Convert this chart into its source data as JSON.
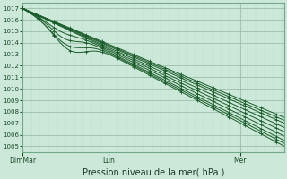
{
  "xlabel": "Pression niveau de la mer( hPa )",
  "ylim": [
    1004.5,
    1017.5
  ],
  "yticks": [
    1005,
    1006,
    1007,
    1008,
    1009,
    1010,
    1011,
    1012,
    1013,
    1014,
    1015,
    1016,
    1017
  ],
  "xtick_labels": [
    "DimMar",
    "Lun",
    "Mer"
  ],
  "xtick_positions": [
    0,
    0.33,
    0.83
  ],
  "background_color": "#cce8d8",
  "grid_minor_color": "#b0d4c0",
  "grid_major_color": "#90b8a0",
  "line_color": "#1a5c2a",
  "n": 100,
  "offsets": [
    0.0,
    0.5,
    1.0,
    1.5,
    2.0,
    2.5,
    -0.5,
    -1.0,
    -1.5
  ],
  "ytick_fontsize": 5.0,
  "xtick_fontsize": 5.5,
  "xlabel_fontsize": 7.0
}
